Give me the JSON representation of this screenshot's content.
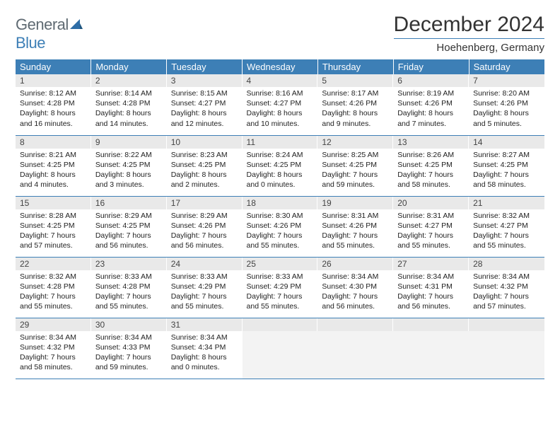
{
  "logo": {
    "text1": "General",
    "text2": "Blue",
    "icon_color": "#2e6ea7"
  },
  "header": {
    "title": "December 2024",
    "location": "Hoehenberg, Germany"
  },
  "colors": {
    "header_bg": "#3d7fb6",
    "header_fg": "#ffffff",
    "daynum_bg": "#e9e9e9",
    "rule": "#3d7fb6",
    "text": "#222222",
    "empty_bg": "#f3f3f3"
  },
  "typography": {
    "title_fontsize": 30,
    "subtitle_fontsize": 15,
    "th_fontsize": 13,
    "daynum_fontsize": 12,
    "body_fontsize": 10.5
  },
  "columns": [
    "Sunday",
    "Monday",
    "Tuesday",
    "Wednesday",
    "Thursday",
    "Friday",
    "Saturday"
  ],
  "type": "table",
  "weeks": [
    [
      {
        "n": "1",
        "sr": "8:12 AM",
        "ss": "4:28 PM",
        "dl": "8 hours and 16 minutes."
      },
      {
        "n": "2",
        "sr": "8:14 AM",
        "ss": "4:28 PM",
        "dl": "8 hours and 14 minutes."
      },
      {
        "n": "3",
        "sr": "8:15 AM",
        "ss": "4:27 PM",
        "dl": "8 hours and 12 minutes."
      },
      {
        "n": "4",
        "sr": "8:16 AM",
        "ss": "4:27 PM",
        "dl": "8 hours and 10 minutes."
      },
      {
        "n": "5",
        "sr": "8:17 AM",
        "ss": "4:26 PM",
        "dl": "8 hours and 9 minutes."
      },
      {
        "n": "6",
        "sr": "8:19 AM",
        "ss": "4:26 PM",
        "dl": "8 hours and 7 minutes."
      },
      {
        "n": "7",
        "sr": "8:20 AM",
        "ss": "4:26 PM",
        "dl": "8 hours and 5 minutes."
      }
    ],
    [
      {
        "n": "8",
        "sr": "8:21 AM",
        "ss": "4:25 PM",
        "dl": "8 hours and 4 minutes."
      },
      {
        "n": "9",
        "sr": "8:22 AM",
        "ss": "4:25 PM",
        "dl": "8 hours and 3 minutes."
      },
      {
        "n": "10",
        "sr": "8:23 AM",
        "ss": "4:25 PM",
        "dl": "8 hours and 2 minutes."
      },
      {
        "n": "11",
        "sr": "8:24 AM",
        "ss": "4:25 PM",
        "dl": "8 hours and 0 minutes."
      },
      {
        "n": "12",
        "sr": "8:25 AM",
        "ss": "4:25 PM",
        "dl": "7 hours and 59 minutes."
      },
      {
        "n": "13",
        "sr": "8:26 AM",
        "ss": "4:25 PM",
        "dl": "7 hours and 58 minutes."
      },
      {
        "n": "14",
        "sr": "8:27 AM",
        "ss": "4:25 PM",
        "dl": "7 hours and 58 minutes."
      }
    ],
    [
      {
        "n": "15",
        "sr": "8:28 AM",
        "ss": "4:25 PM",
        "dl": "7 hours and 57 minutes."
      },
      {
        "n": "16",
        "sr": "8:29 AM",
        "ss": "4:25 PM",
        "dl": "7 hours and 56 minutes."
      },
      {
        "n": "17",
        "sr": "8:29 AM",
        "ss": "4:26 PM",
        "dl": "7 hours and 56 minutes."
      },
      {
        "n": "18",
        "sr": "8:30 AM",
        "ss": "4:26 PM",
        "dl": "7 hours and 55 minutes."
      },
      {
        "n": "19",
        "sr": "8:31 AM",
        "ss": "4:26 PM",
        "dl": "7 hours and 55 minutes."
      },
      {
        "n": "20",
        "sr": "8:31 AM",
        "ss": "4:27 PM",
        "dl": "7 hours and 55 minutes."
      },
      {
        "n": "21",
        "sr": "8:32 AM",
        "ss": "4:27 PM",
        "dl": "7 hours and 55 minutes."
      }
    ],
    [
      {
        "n": "22",
        "sr": "8:32 AM",
        "ss": "4:28 PM",
        "dl": "7 hours and 55 minutes."
      },
      {
        "n": "23",
        "sr": "8:33 AM",
        "ss": "4:28 PM",
        "dl": "7 hours and 55 minutes."
      },
      {
        "n": "24",
        "sr": "8:33 AM",
        "ss": "4:29 PM",
        "dl": "7 hours and 55 minutes."
      },
      {
        "n": "25",
        "sr": "8:33 AM",
        "ss": "4:29 PM",
        "dl": "7 hours and 55 minutes."
      },
      {
        "n": "26",
        "sr": "8:34 AM",
        "ss": "4:30 PM",
        "dl": "7 hours and 56 minutes."
      },
      {
        "n": "27",
        "sr": "8:34 AM",
        "ss": "4:31 PM",
        "dl": "7 hours and 56 minutes."
      },
      {
        "n": "28",
        "sr": "8:34 AM",
        "ss": "4:32 PM",
        "dl": "7 hours and 57 minutes."
      }
    ],
    [
      {
        "n": "29",
        "sr": "8:34 AM",
        "ss": "4:32 PM",
        "dl": "7 hours and 58 minutes."
      },
      {
        "n": "30",
        "sr": "8:34 AM",
        "ss": "4:33 PM",
        "dl": "7 hours and 59 minutes."
      },
      {
        "n": "31",
        "sr": "8:34 AM",
        "ss": "4:34 PM",
        "dl": "8 hours and 0 minutes."
      },
      null,
      null,
      null,
      null
    ]
  ],
  "labels": {
    "sunrise": "Sunrise: ",
    "sunset": "Sunset: ",
    "daylight": "Daylight: "
  }
}
